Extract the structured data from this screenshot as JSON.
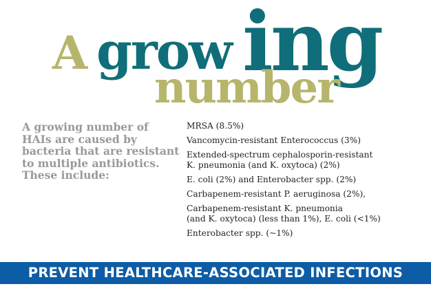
{
  "title": {
    "part1": "A",
    "part2": "grow",
    "part3": "ing",
    "part4": "number"
  },
  "intro": "A growing number of HAIs are caused by bacteria that are resistant to multiple antibiotics.  These include:",
  "items": [
    "MRSA (8.5%)",
    "Vancomycin-resistant Enterococcus (3%)",
    "Extended-spectrum cephalosporin-resistant\nK. pneumonia (and K. oxytoca) (2%)",
    "E. coli (2%) and Enterobacter spp. (2%)",
    "Carbapenem-resistant P. aeruginosa (2%),",
    "Carbapenem-resistant K. pneumonia\n(and K. oxytoca) (less than 1%), E. coli (<1%)",
    "Enterobacter spp. (~1%)"
  ],
  "banner": "PREVENT HEALTHCARE-ASSOCIATED INFECTIONS",
  "colors": {
    "teal": "#0f6e79",
    "olive": "#b7b56c",
    "gray": "#999999",
    "banner": "#0d5ca6"
  }
}
